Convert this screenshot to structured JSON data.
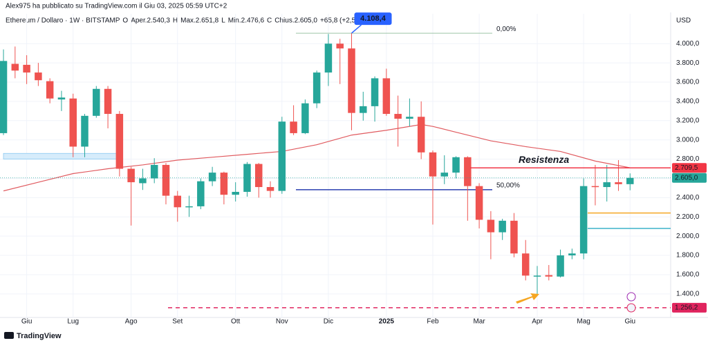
{
  "chart_data": {
    "type": "candlestick",
    "header": "Alex975 ha pubblicato su TradingView.com il Giu 03, 2025 05:59 UTC+2",
    "legend": [
      "Ethereum / Dollaro · 1W · BITSTAMP",
      "O",
      "Aper.2.540,3",
      "H",
      "Max.2.651,8",
      "L",
      "Min.2.476,6",
      "C",
      "Chius.2.605,0",
      "+65,8 (+2,59%)"
    ],
    "currency": "USD",
    "brand": "TradingView",
    "up_color": "#26a69a",
    "down_color": "#ef5350",
    "grid": true,
    "ylim": [
      1155,
      4310
    ],
    "yticks": [
      {
        "value": 1400,
        "label": "1.400,0"
      },
      {
        "value": 1600,
        "label": "1.600,0"
      },
      {
        "value": 1800,
        "label": "1.800,0"
      },
      {
        "value": 2000,
        "label": "2.000,0"
      },
      {
        "value": 2200,
        "label": "2.200,0"
      },
      {
        "value": 2400,
        "label": "2.400,0"
      },
      {
        "value": 2600,
        "label": "2.600,0"
      },
      {
        "value": 2800,
        "label": "2.800,0"
      },
      {
        "value": 3000,
        "label": "3.000,0"
      },
      {
        "value": 3200,
        "label": "3.200,0"
      },
      {
        "value": 3400,
        "label": "3.400,0"
      },
      {
        "value": 3600,
        "label": "3.600,0"
      },
      {
        "value": 3800,
        "label": "3.800,0"
      },
      {
        "value": 4000,
        "label": "4.000,0"
      }
    ],
    "xlim": [
      -0.3,
      57.5
    ],
    "xticks": [
      {
        "value": 2,
        "label": "Giu"
      },
      {
        "value": 6,
        "label": "Lug"
      },
      {
        "value": 11,
        "label": "Ago"
      },
      {
        "value": 15,
        "label": "Set"
      },
      {
        "value": 20,
        "label": "Ott"
      },
      {
        "value": 24,
        "label": "Nov"
      },
      {
        "value": 28,
        "label": "Dic"
      },
      {
        "value": 33,
        "label": "2025"
      },
      {
        "value": 37,
        "label": "Feb"
      },
      {
        "value": 41,
        "label": "Mar"
      },
      {
        "value": 46,
        "label": "Apr"
      },
      {
        "value": 50,
        "label": "Mag"
      },
      {
        "value": 54,
        "label": "Giu"
      }
    ],
    "candles": [
      {
        "open": 3070,
        "high": 3940,
        "low": 3050,
        "close": 3820
      },
      {
        "open": 3790,
        "high": 3970,
        "low": 3640,
        "close": 3720
      },
      {
        "open": 3780,
        "high": 3880,
        "low": 3580,
        "close": 3700
      },
      {
        "open": 3700,
        "high": 3800,
        "low": 3560,
        "close": 3620
      },
      {
        "open": 3610,
        "high": 3640,
        "low": 3380,
        "close": 3430
      },
      {
        "open": 3420,
        "high": 3510,
        "low": 3300,
        "close": 3440
      },
      {
        "open": 3430,
        "high": 3480,
        "low": 2820,
        "close": 2930
      },
      {
        "open": 2930,
        "high": 3270,
        "low": 2820,
        "close": 3250
      },
      {
        "open": 3250,
        "high": 3560,
        "low": 3230,
        "close": 3530
      },
      {
        "open": 3530,
        "high": 3560,
        "low": 3120,
        "close": 3270
      },
      {
        "open": 3270,
        "high": 3300,
        "low": 2620,
        "close": 2700
      },
      {
        "open": 2700,
        "high": 2720,
        "low": 2110,
        "close": 2560
      },
      {
        "open": 2550,
        "high": 2700,
        "low": 2480,
        "close": 2600
      },
      {
        "open": 2600,
        "high": 2810,
        "low": 2550,
        "close": 2740
      },
      {
        "open": 2740,
        "high": 2760,
        "low": 2330,
        "close": 2420
      },
      {
        "open": 2420,
        "high": 2470,
        "low": 2150,
        "close": 2300
      },
      {
        "open": 2300,
        "high": 2420,
        "low": 2200,
        "close": 2310
      },
      {
        "open": 2310,
        "high": 2600,
        "low": 2280,
        "close": 2570
      },
      {
        "open": 2570,
        "high": 2720,
        "low": 2520,
        "close": 2660
      },
      {
        "open": 2660,
        "high": 2670,
        "low": 2330,
        "close": 2430
      },
      {
        "open": 2430,
        "high": 2560,
        "low": 2360,
        "close": 2460
      },
      {
        "open": 2460,
        "high": 2770,
        "low": 2410,
        "close": 2750
      },
      {
        "open": 2750,
        "high": 2760,
        "low": 2400,
        "close": 2510
      },
      {
        "open": 2510,
        "high": 2570,
        "low": 2400,
        "close": 2470
      },
      {
        "open": 2470,
        "high": 3240,
        "low": 2440,
        "close": 3190
      },
      {
        "open": 3190,
        "high": 3360,
        "low": 3050,
        "close": 3070
      },
      {
        "open": 3070,
        "high": 3420,
        "low": 3060,
        "close": 3380
      },
      {
        "open": 3380,
        "high": 3720,
        "low": 3330,
        "close": 3700
      },
      {
        "open": 3700,
        "high": 4100,
        "low": 3560,
        "close": 4000
      },
      {
        "open": 4000,
        "high": 4050,
        "low": 3580,
        "close": 3950
      },
      {
        "open": 3950,
        "high": 4108.4,
        "low": 3100,
        "close": 3280
      },
      {
        "open": 3280,
        "high": 3500,
        "low": 3200,
        "close": 3350
      },
      {
        "open": 3350,
        "high": 3660,
        "low": 3190,
        "close": 3640
      },
      {
        "open": 3640,
        "high": 3740,
        "low": 3250,
        "close": 3270
      },
      {
        "open": 3270,
        "high": 3460,
        "low": 2930,
        "close": 3220
      },
      {
        "open": 3220,
        "high": 3430,
        "low": 3140,
        "close": 3240
      },
      {
        "open": 3240,
        "high": 3400,
        "low": 2800,
        "close": 2870
      },
      {
        "open": 2870,
        "high": 2890,
        "low": 2120,
        "close": 2620
      },
      {
        "open": 2620,
        "high": 2840,
        "low": 2540,
        "close": 2660
      },
      {
        "open": 2660,
        "high": 2830,
        "low": 2600,
        "close": 2820
      },
      {
        "open": 2820,
        "high": 2830,
        "low": 2160,
        "close": 2520
      },
      {
        "open": 2520,
        "high": 2550,
        "low": 2080,
        "close": 2170
      },
      {
        "open": 2170,
        "high": 2260,
        "low": 1760,
        "close": 2040
      },
      {
        "open": 2040,
        "high": 2180,
        "low": 1960,
        "close": 2160
      },
      {
        "open": 2160,
        "high": 2240,
        "low": 1780,
        "close": 1820
      },
      {
        "open": 1820,
        "high": 1960,
        "low": 1540,
        "close": 1590
      },
      {
        "open": 1580,
        "high": 1690,
        "low": 1385,
        "close": 1590
      },
      {
        "open": 1595,
        "high": 1700,
        "low": 1540,
        "close": 1580
      },
      {
        "open": 1580,
        "high": 1860,
        "low": 1570,
        "close": 1800
      },
      {
        "open": 1800,
        "high": 1870,
        "low": 1760,
        "close": 1820
      },
      {
        "open": 1820,
        "high": 2600,
        "low": 1760,
        "close": 2520
      },
      {
        "open": 2520,
        "high": 2740,
        "low": 2320,
        "close": 2510
      },
      {
        "open": 2510,
        "high": 2740,
        "low": 2360,
        "close": 2560
      },
      {
        "open": 2560,
        "high": 2790,
        "low": 2470,
        "close": 2540
      },
      {
        "open": 2540,
        "high": 2651.8,
        "low": 2476.6,
        "close": 2605
      }
    ],
    "moving_average": {
      "color": "#e05a5f",
      "x": [
        0,
        3,
        6,
        9,
        12,
        15,
        18,
        21,
        24,
        27,
        30,
        33,
        36,
        37,
        39,
        42,
        45,
        48,
        51,
        54
      ],
      "values": [
        2470,
        2560,
        2650,
        2700,
        2740,
        2790,
        2820,
        2850,
        2880,
        2950,
        3050,
        3100,
        3160,
        3140,
        3080,
        2990,
        2930,
        2880,
        2780,
        2710
      ]
    },
    "resistance": {
      "text": "Resistenza",
      "value": 2709.5,
      "label": "2.709,5",
      "color": "#f23645"
    },
    "last_price": {
      "value": 2605,
      "label": "2.605,0",
      "color": "#26a69a"
    },
    "support": {
      "value": 1256.2,
      "label": "1.256,2",
      "color": "#e0245e"
    },
    "fib_levels": [
      {
        "pct": 0,
        "label": "0,00%",
        "price": 4108.4,
        "color": "#9ec4a6"
      },
      {
        "pct": 50,
        "label": "50,00%",
        "price": 2482,
        "color": "#2a3fb0"
      }
    ],
    "peak_callout": {
      "value": 4108.4,
      "label": "4.108,4",
      "color": "#2962ff"
    },
    "extra_levels": [
      {
        "value": 2240,
        "color": "#f5a623"
      },
      {
        "value": 2080,
        "color": "#3bb2c9"
      }
    ],
    "zone": {
      "low": 2800,
      "high": 2860,
      "color": "#d6ecfb"
    }
  }
}
